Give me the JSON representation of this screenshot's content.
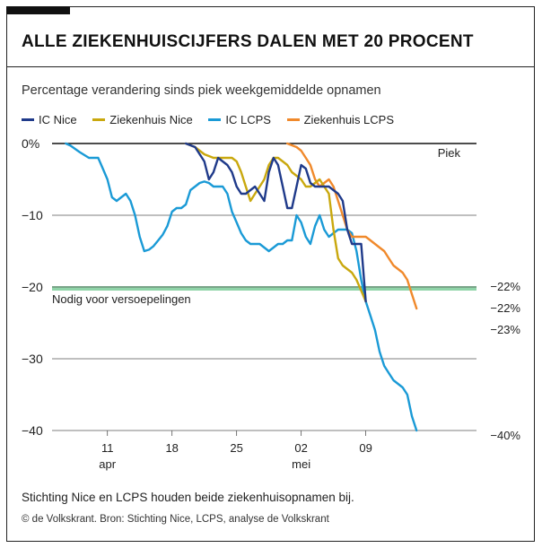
{
  "title": "ALLE ZIEKENHUISCIJFERS DALEN MET 20 PROCENT",
  "subtitle": "Percentage verandering sinds piek weekgemiddelde opnamen",
  "legend": [
    {
      "name": "IC Nice",
      "color": "#1f3a8a"
    },
    {
      "name": "Ziekenhuis Nice",
      "color": "#c9a80e"
    },
    {
      "name": "IC LCPS",
      "color": "#1a9ad6"
    },
    {
      "name": "Ziekenhuis LCPS",
      "color": "#f0892b"
    }
  ],
  "chart_data": {
    "type": "line",
    "title": "Percentage verandering sinds piek weekgemiddelde opnamen",
    "xlabel": "",
    "ylabel": "",
    "x_unit": "days since 11 apr",
    "xlim": [
      -6,
      40
    ],
    "ylim": [
      -40,
      0
    ],
    "yticks": [
      {
        "value": 0,
        "label": "0%"
      },
      {
        "value": -10,
        "label": "−10"
      },
      {
        "value": -20,
        "label": "−20"
      },
      {
        "value": -30,
        "label": "−30"
      },
      {
        "value": -40,
        "label": "−40"
      }
    ],
    "xticks": [
      {
        "x": 0,
        "label": "11",
        "sub": "apr"
      },
      {
        "x": 7,
        "label": "18",
        "sub": ""
      },
      {
        "x": 14,
        "label": "25",
        "sub": ""
      },
      {
        "x": 21,
        "label": "02",
        "sub": "mei"
      },
      {
        "x": 28,
        "label": "09",
        "sub": ""
      }
    ],
    "grid": true,
    "annotations": {
      "peak_label": "Piek",
      "threshold_value": -20,
      "threshold_label": "Nodig voor versoepelingen"
    },
    "series": [
      {
        "name": "IC Nice",
        "color": "#1f3a8a",
        "x": [
          8.5,
          9.5,
          10.5,
          11.0,
          11.5,
          12.0,
          12.5,
          13.0,
          13.5,
          14.0,
          14.5,
          15.0,
          15.5,
          16.0,
          16.5,
          17.0,
          17.5,
          18.0,
          18.5,
          19.0,
          19.5,
          20.0,
          20.5,
          21.0,
          21.5,
          22.0,
          22.5,
          23.0,
          23.5,
          24.0,
          24.5,
          25.0,
          25.5,
          26.0,
          26.5,
          27.0,
          27.5,
          28.0
        ],
        "y": [
          0,
          -0.5,
          -2.5,
          -5,
          -4,
          -2,
          -2.5,
          -3,
          -4,
          -6,
          -7,
          -7,
          -6.5,
          -6,
          -7,
          -8,
          -4,
          -2,
          -3,
          -6,
          -9,
          -9,
          -6,
          -3,
          -3.5,
          -5.5,
          -6,
          -6,
          -6,
          -6,
          -6.5,
          -7,
          -8,
          -12,
          -14,
          -14,
          -14,
          -22
        ]
      },
      {
        "name": "Ziekenhuis Nice",
        "color": "#c9a80e",
        "x": [
          8.5,
          9.5,
          10.5,
          11.5,
          12.0,
          12.5,
          13.0,
          13.5,
          14.0,
          14.5,
          15.0,
          15.5,
          16.0,
          16.5,
          17.0,
          17.5,
          18.0,
          18.5,
          19.0,
          19.5,
          20.0,
          20.5,
          21.0,
          21.5,
          22.0,
          22.5,
          23.0,
          23.5,
          24.0,
          24.5,
          25.0,
          25.5,
          26.0,
          26.5,
          27.0,
          27.5,
          28.0
        ],
        "y": [
          0,
          -0.5,
          -1.5,
          -2,
          -2,
          -2,
          -2,
          -2,
          -2.5,
          -4,
          -6,
          -8,
          -7,
          -6,
          -5,
          -3,
          -2,
          -2,
          -2.5,
          -3,
          -4,
          -4.5,
          -5,
          -6,
          -6,
          -5.5,
          -5,
          -6,
          -7,
          -12,
          -16,
          -17,
          -17.5,
          -18,
          -19,
          -20.5,
          -22
        ]
      },
      {
        "name": "IC LCPS",
        "color": "#1a9ad6",
        "x": [
          -4.5,
          -4,
          -3,
          -2,
          -1,
          -0.5,
          0,
          0.5,
          1,
          1.5,
          2,
          2.5,
          3,
          3.5,
          4,
          4.5,
          5,
          5.5,
          6,
          6.5,
          7,
          7.5,
          8,
          8.5,
          9,
          9.5,
          10,
          10.5,
          11,
          11.5,
          12,
          12.5,
          13,
          13.5,
          14,
          14.5,
          15,
          15.5,
          16,
          16.5,
          17,
          17.5,
          18,
          18.5,
          19,
          19.5,
          20,
          20.5,
          21,
          21.5,
          22,
          22.5,
          23,
          23.5,
          24,
          24.5,
          25,
          25.5,
          26,
          26.5,
          27,
          27.5,
          28,
          28.5,
          29,
          29.5,
          30,
          30.5,
          31,
          31.5,
          32,
          32.5,
          33,
          33.5
        ],
        "y": [
          0,
          -0.3,
          -1.2,
          -2,
          -2,
          -3.5,
          -5,
          -7.5,
          -8,
          -7.5,
          -7,
          -8,
          -10,
          -13,
          -15,
          -14.8,
          -14.3,
          -13.5,
          -12.7,
          -11.5,
          -9.5,
          -9,
          -9,
          -8.5,
          -6.5,
          -6,
          -5.5,
          -5.3,
          -5.5,
          -6,
          -6,
          -6,
          -7,
          -9.5,
          -11,
          -12.5,
          -13.5,
          -14,
          -14,
          -14,
          -14.5,
          -15,
          -14.5,
          -14,
          -14,
          -13.5,
          -13.5,
          -10,
          -11,
          -13,
          -14,
          -11.5,
          -10,
          -12,
          -13,
          -12.5,
          -12,
          -12,
          -12,
          -12.5,
          -15,
          -19,
          -22,
          -24,
          -26,
          -29,
          -31,
          -32,
          -33,
          -33.5,
          -34,
          -35,
          -38,
          -40
        ]
      },
      {
        "name": "Ziekenhuis LCPS",
        "color": "#f0892b",
        "x": [
          19.5,
          20.5,
          21,
          21.5,
          22,
          22.5,
          23,
          23.5,
          24,
          24.5,
          25,
          25.5,
          26,
          26.5,
          27,
          27.5,
          28,
          28.5,
          29,
          29.5,
          30,
          30.5,
          31,
          31.5,
          32,
          32.5,
          33,
          33.5
        ],
        "y": [
          0,
          -0.5,
          -1,
          -2,
          -3,
          -5,
          -6,
          -5.5,
          -5,
          -6,
          -8,
          -10,
          -12,
          -13,
          -13,
          -13,
          -13,
          -13.5,
          -14,
          -14.5,
          -15,
          -16,
          -17,
          -17.5,
          -18,
          -19,
          -21,
          -23
        ]
      }
    ],
    "end_labels": [
      {
        "value": -22,
        "label": "−22%"
      },
      {
        "value": -22,
        "label": "−22%"
      },
      {
        "value": -23,
        "label": "−23%"
      },
      {
        "value": -40,
        "label": "−40%"
      }
    ]
  },
  "footnote": "Stichting Nice en LCPS houden beide ziekenhuisopnamen bij.",
  "credit": "© de Volkskrant. Bron: Stichting Nice, LCPS, analyse de Volkskrant"
}
